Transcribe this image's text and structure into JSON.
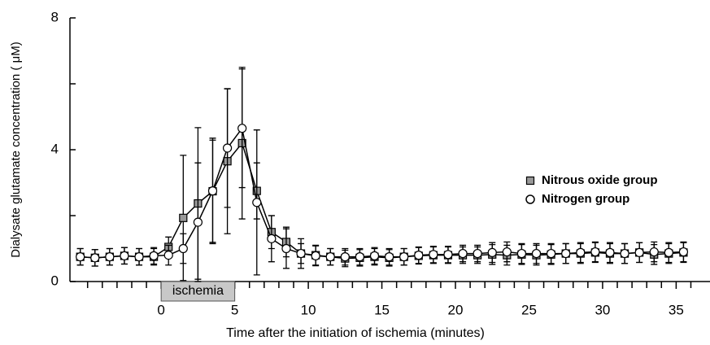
{
  "chart_data": {
    "type": "line",
    "x_label": "Time after the initiation of ischemia (minutes)",
    "y_label": "Dialysate glutamate concentration ( μM)",
    "x": [
      -5.5,
      -4.5,
      -3.5,
      -2.5,
      -1.5,
      -0.5,
      0.5,
      1.5,
      2.5,
      3.5,
      4.5,
      5.5,
      6.5,
      7.5,
      8.5,
      9.5,
      10.5,
      11.5,
      12.5,
      13.5,
      14.5,
      15.5,
      16.5,
      17.5,
      18.5,
      19.5,
      20.5,
      21.5,
      22.5,
      23.5,
      24.5,
      25.5,
      26.5,
      27.5,
      28.5,
      29.5,
      30.5,
      31.5,
      32.5,
      33.5,
      34.5,
      35.5
    ],
    "series": [
      {
        "name": "Nitrous oxide group",
        "color": "#999999",
        "marker": "square",
        "values": [
          0.75,
          0.72,
          0.75,
          0.78,
          0.75,
          0.75,
          1.05,
          1.93,
          2.37,
          2.74,
          3.65,
          4.2,
          2.75,
          1.5,
          1.2,
          0.85,
          0.8,
          0.75,
          0.7,
          0.72,
          0.75,
          0.72,
          0.75,
          0.78,
          0.8,
          0.8,
          0.8,
          0.8,
          0.82,
          0.8,
          0.82,
          0.8,
          0.82,
          0.85,
          0.85,
          0.88,
          0.85,
          0.85,
          0.88,
          0.82,
          0.85,
          0.88
        ],
        "errors": [
          0.25,
          0.25,
          0.25,
          0.25,
          0.25,
          0.25,
          0.3,
          1.9,
          2.3,
          1.55,
          2.2,
          2.3,
          0.85,
          0.5,
          0.45,
          0.3,
          0.3,
          0.25,
          0.25,
          0.25,
          0.25,
          0.25,
          0.25,
          0.25,
          0.25,
          0.25,
          0.25,
          0.25,
          0.3,
          0.3,
          0.3,
          0.3,
          0.3,
          0.3,
          0.3,
          0.3,
          0.3,
          0.3,
          0.3,
          0.3,
          0.3,
          0.3
        ]
      },
      {
        "name": "Nitrogen group",
        "color": "#ffffff",
        "marker": "circle",
        "values": [
          0.75,
          0.72,
          0.75,
          0.78,
          0.75,
          0.78,
          0.8,
          1.0,
          1.8,
          2.75,
          4.05,
          4.65,
          2.4,
          1.3,
          1.0,
          0.85,
          0.78,
          0.75,
          0.75,
          0.75,
          0.78,
          0.75,
          0.75,
          0.8,
          0.82,
          0.82,
          0.85,
          0.85,
          0.88,
          0.9,
          0.85,
          0.85,
          0.85,
          0.85,
          0.88,
          0.9,
          0.88,
          0.85,
          0.88,
          0.9,
          0.88,
          0.9
        ],
        "errors": [
          0.25,
          0.25,
          0.25,
          0.25,
          0.25,
          0.25,
          0.3,
          0.45,
          1.8,
          1.6,
          1.8,
          1.8,
          2.2,
          0.7,
          0.6,
          0.45,
          0.3,
          0.25,
          0.25,
          0.25,
          0.25,
          0.25,
          0.25,
          0.25,
          0.25,
          0.25,
          0.25,
          0.25,
          0.3,
          0.3,
          0.3,
          0.3,
          0.3,
          0.3,
          0.3,
          0.3,
          0.3,
          0.3,
          0.3,
          0.3,
          0.3,
          0.3
        ]
      }
    ],
    "xlim": [
      -6.2,
      37.3
    ],
    "xticks": [
      0,
      5,
      10,
      15,
      20,
      25,
      30,
      35
    ],
    "xminorticks": [
      -5,
      -4,
      -3,
      -2,
      -1,
      1,
      2,
      3,
      4,
      6,
      7,
      8,
      9,
      11,
      12,
      13,
      14,
      16,
      17,
      18,
      19,
      21,
      22,
      23,
      24,
      26,
      27,
      28,
      29,
      31,
      32,
      33,
      34,
      36
    ],
    "ylim": [
      0,
      8
    ],
    "yticks": [
      0,
      4,
      8
    ],
    "yminorticks": [
      2,
      6
    ],
    "legend": "right",
    "annotations": [
      {
        "text": "ischemia",
        "x": [
          0,
          5
        ]
      }
    ]
  }
}
